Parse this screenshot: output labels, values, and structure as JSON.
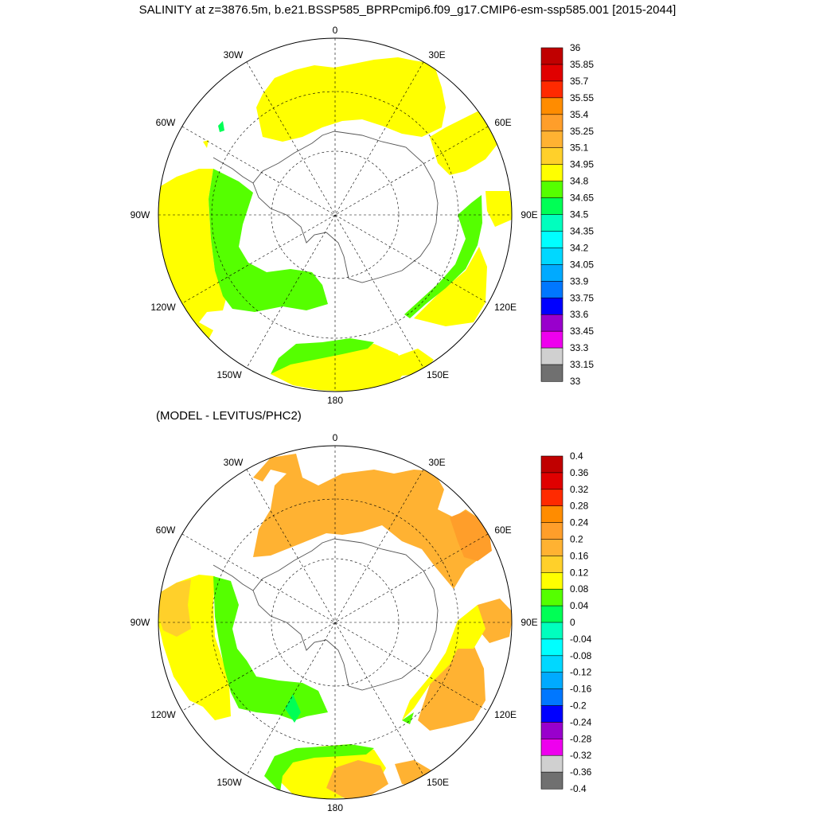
{
  "title": "SALINITY at z=3876.5m, b.e21.BSSP585_BPRPcmip6.f09_g17.CMIP6-esm-ssp585.001 [2015-2044]",
  "subtitle": "(MODEL - LEVITUS/PHC2)",
  "longitude_labels": [
    "0",
    "30E",
    "60E",
    "90E",
    "120E",
    "150E",
    "180",
    "150W",
    "120W",
    "90W",
    "60W",
    "30W"
  ],
  "panels": [
    {
      "name": "salinity",
      "colorbar": {
        "labels": [
          "36",
          "35.85",
          "35.7",
          "35.55",
          "35.4",
          "35.25",
          "35.1",
          "34.95",
          "34.8",
          "34.65",
          "34.5",
          "34.35",
          "34.2",
          "34.05",
          "33.9",
          "33.75",
          "33.6",
          "33.45",
          "33.3",
          "33.15",
          "33"
        ],
        "colors": [
          "#c00000",
          "#e00000",
          "#ff2a00",
          "#ff8c00",
          "#ff9e2a",
          "#ffb232",
          "#ffd02a",
          "#ffff00",
          "#55ff00",
          "#00ff55",
          "#00ffbe",
          "#00ffff",
          "#00d8ff",
          "#00aaff",
          "#0077ff",
          "#0000ff",
          "#9900cc",
          "#ee00ee",
          "#d0d0d0",
          "#707070"
        ]
      }
    },
    {
      "name": "difference",
      "colorbar": {
        "labels": [
          "0.4",
          "0.36",
          "0.32",
          "0.28",
          "0.24",
          "0.2",
          "0.16",
          "0.12",
          "0.08",
          "0.04",
          "0",
          "-0.04",
          "-0.08",
          "-0.12",
          "-0.16",
          "-0.2",
          "-0.24",
          "-0.28",
          "-0.32",
          "-0.36",
          "-0.4"
        ],
        "colors": [
          "#c00000",
          "#e00000",
          "#ff2a00",
          "#ff8c00",
          "#ff9e2a",
          "#ffb232",
          "#ffd02a",
          "#ffff00",
          "#55ff00",
          "#00ff55",
          "#00ffbe",
          "#00ffff",
          "#00d8ff",
          "#00aaff",
          "#0077ff",
          "#0000ff",
          "#9900cc",
          "#ee00ee",
          "#d0d0d0",
          "#707070"
        ]
      }
    }
  ],
  "colors": {
    "yellow": "#ffff00",
    "green": "#55ff00",
    "orange": "#ffb232",
    "dark_orange": "#ff9e2a",
    "gold": "#ffd02a"
  }
}
